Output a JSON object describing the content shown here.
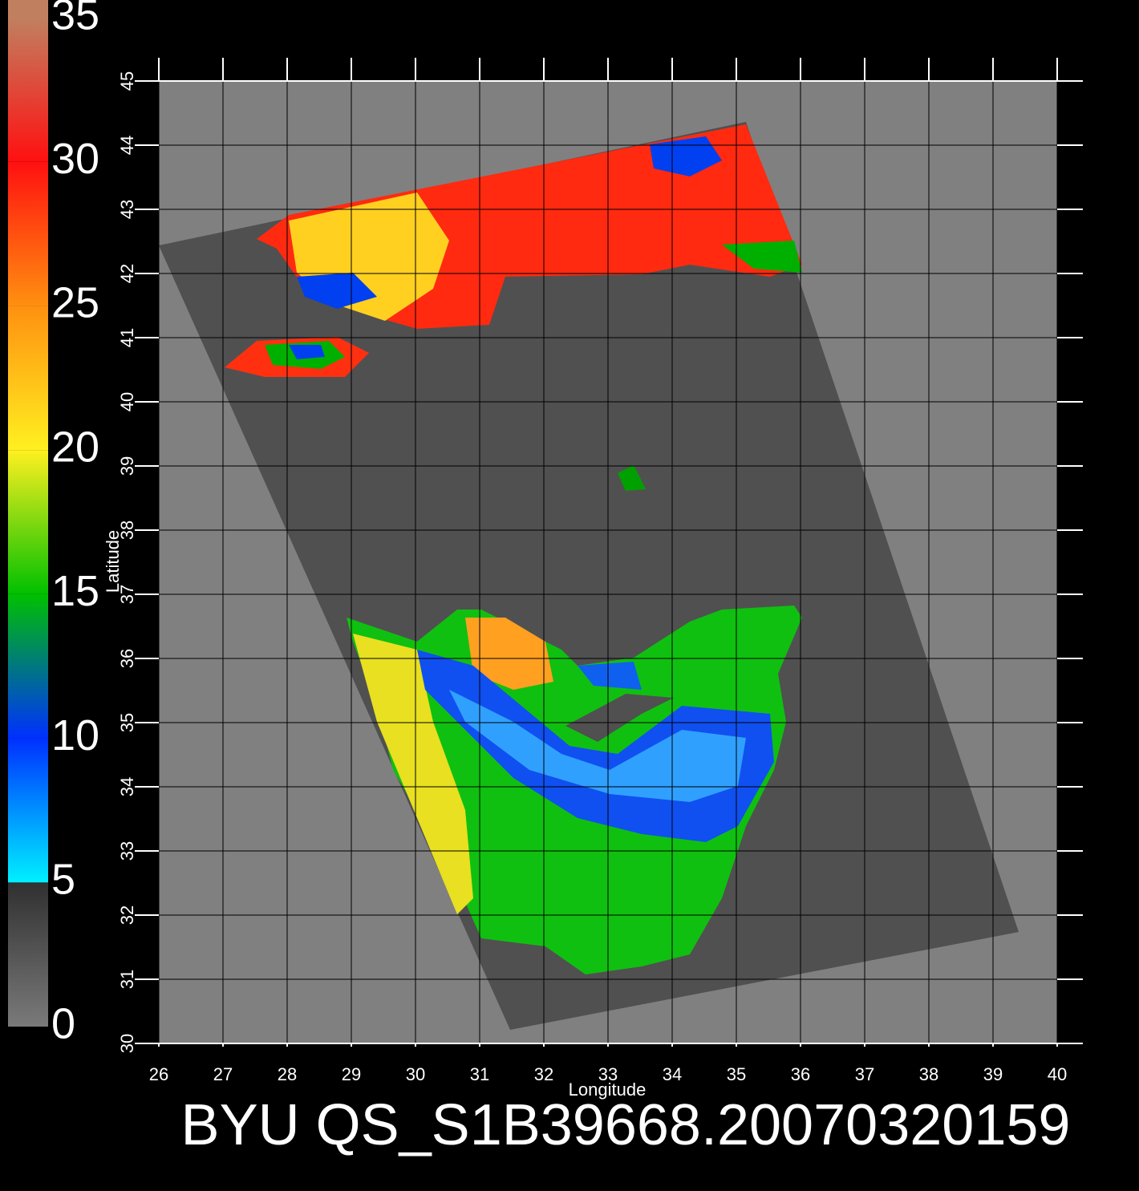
{
  "map": {
    "title": "BYU QS_S1B39668.20070320159",
    "x_label": "Longitude",
    "y_label": "Latitude",
    "xlim": [
      26,
      40
    ],
    "ylim": [
      30,
      45
    ],
    "xticks": [
      26,
      27,
      28,
      29,
      30,
      31,
      32,
      33,
      34,
      35,
      36,
      37,
      38,
      39,
      40
    ],
    "yticks": [
      30,
      31,
      32,
      33,
      34,
      35,
      36,
      37,
      38,
      39,
      40,
      41,
      42,
      43,
      44,
      45
    ],
    "colorbar": {
      "lim": [
        0,
        35
      ],
      "ticks": [
        0,
        5,
        10,
        15,
        20,
        25,
        30,
        35
      ],
      "colors": [
        "#7a7a7a",
        "#00f0ff",
        "#0030ff",
        "#00c000",
        "#fff020",
        "#ff9010",
        "#ff1010",
        "#c08060"
      ]
    }
  }
}
